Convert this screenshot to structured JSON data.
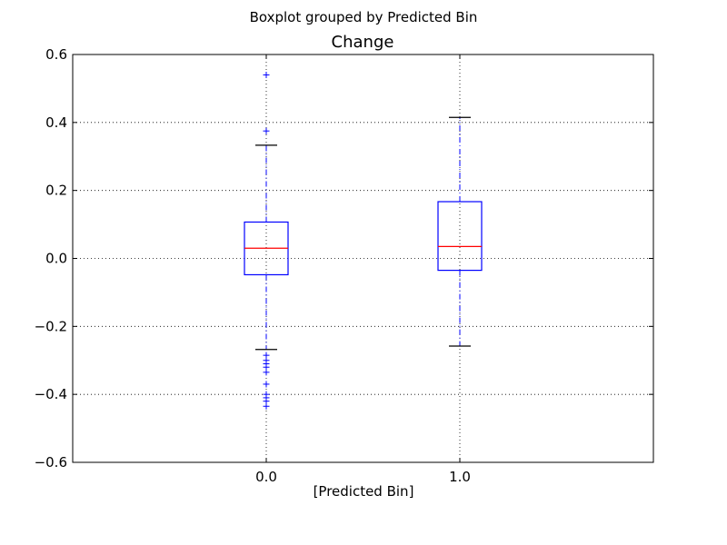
{
  "chart_data": {
    "type": "boxplot",
    "suptitle": "Boxplot grouped by Predicted Bin",
    "title": "Change",
    "xlabel": "[Predicted Bin]",
    "ylabel": "",
    "ylim": [
      -0.6,
      0.6
    ],
    "yticks": [
      -0.6,
      -0.4,
      -0.2,
      0.0,
      0.2,
      0.4,
      0.6
    ],
    "ytick_labels": [
      "−0.6",
      "−0.4",
      "−0.2",
      "0.0",
      "0.2",
      "0.4",
      "0.6"
    ],
    "categories": [
      "0.0",
      "1.0"
    ],
    "grid": true,
    "boxes": [
      {
        "category": "0.0",
        "q1": -0.048,
        "median": 0.03,
        "q3": 0.107,
        "whisker_low": -0.268,
        "whisker_high": 0.333,
        "outliers": [
          0.54,
          0.375,
          -0.285,
          -0.3,
          -0.31,
          -0.32,
          -0.335,
          -0.37,
          -0.4,
          -0.41,
          -0.42,
          -0.435
        ]
      },
      {
        "category": "1.0",
        "q1": -0.035,
        "median": 0.035,
        "q3": 0.167,
        "whisker_low": -0.258,
        "whisker_high": 0.415,
        "outliers": []
      }
    ],
    "colors": {
      "box": "#0000ff",
      "median": "#ff0000",
      "whisker": "#0000ff",
      "cap": "#000000",
      "outlier": "#0000ff",
      "grid": "#000000"
    }
  }
}
